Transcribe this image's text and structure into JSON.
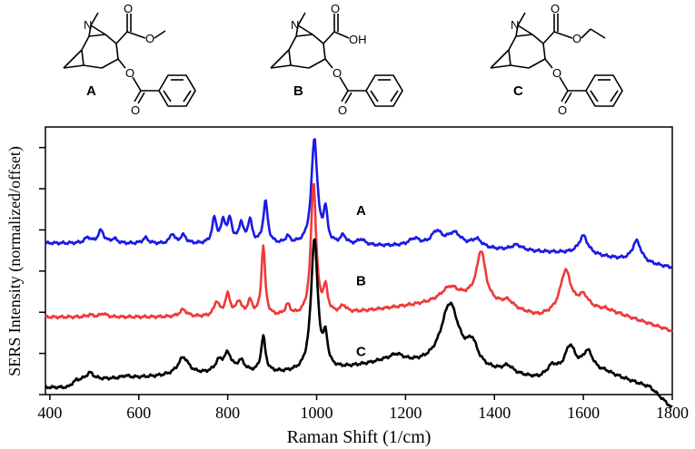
{
  "figure": {
    "structures": [
      {
        "label": "A",
        "atoms": [
          "N",
          "O",
          "O",
          "O",
          "O"
        ]
      },
      {
        "label": "B",
        "atoms": [
          "N",
          "OH",
          "O",
          "O",
          "O"
        ]
      },
      {
        "label": "C",
        "atoms": [
          "N",
          "O",
          "O",
          "O",
          "O"
        ]
      }
    ]
  },
  "chart_data": {
    "type": "line",
    "xlabel": "Raman Shift (1/cm)",
    "ylabel": "SERS Intensity (normalized/offset)",
    "xlim": [
      390,
      1800
    ],
    "x_ticks": [
      400,
      600,
      800,
      1000,
      1200,
      1400,
      1600,
      1800
    ],
    "y_tick_count": 7,
    "y_tick_labels": false,
    "grid": false,
    "series": [
      {
        "name": "A",
        "color": "#1a1ae6",
        "offset": 1.6,
        "baseline": [
          [
            390,
            0.05
          ],
          [
            1000,
            0.02
          ],
          [
            1200,
            0.0
          ],
          [
            1600,
            -0.1
          ],
          [
            1800,
            -0.3
          ]
        ],
        "peaks": [
          [
            485,
            0.08,
            8
          ],
          [
            515,
            0.18,
            8
          ],
          [
            545,
            0.06,
            8
          ],
          [
            615,
            0.08,
            8
          ],
          [
            675,
            0.14,
            6
          ],
          [
            700,
            0.12,
            8
          ],
          [
            770,
            0.35,
            6
          ],
          [
            790,
            0.3,
            6
          ],
          [
            805,
            0.32,
            6
          ],
          [
            830,
            0.28,
            6
          ],
          [
            850,
            0.32,
            6
          ],
          [
            885,
            0.6,
            6
          ],
          [
            935,
            0.1,
            6
          ],
          [
            995,
            1.5,
            8
          ],
          [
            1020,
            0.45,
            5
          ],
          [
            1060,
            0.12,
            8
          ],
          [
            1100,
            0.08,
            10
          ],
          [
            1220,
            0.1,
            15
          ],
          [
            1270,
            0.2,
            15
          ],
          [
            1310,
            0.2,
            20
          ],
          [
            1360,
            0.12,
            15
          ],
          [
            1450,
            0.08,
            15
          ],
          [
            1600,
            0.25,
            12
          ],
          [
            1720,
            0.3,
            12
          ]
        ]
      },
      {
        "name": "B",
        "color": "#ee3a3a",
        "offset": 0.6,
        "baseline": [
          [
            390,
            0.0
          ],
          [
            1000,
            0.0
          ],
          [
            1200,
            0.15
          ],
          [
            1350,
            0.25
          ],
          [
            1500,
            0.0
          ],
          [
            1650,
            0.1
          ],
          [
            1800,
            -0.2
          ]
        ],
        "peaks": [
          [
            490,
            0.03,
            8
          ],
          [
            520,
            0.05,
            8
          ],
          [
            700,
            0.1,
            10
          ],
          [
            775,
            0.2,
            7
          ],
          [
            800,
            0.3,
            7
          ],
          [
            825,
            0.2,
            7
          ],
          [
            850,
            0.2,
            7
          ],
          [
            880,
            1.0,
            5
          ],
          [
            935,
            0.15,
            7
          ],
          [
            993,
            1.9,
            7
          ],
          [
            1020,
            0.35,
            6
          ],
          [
            1060,
            0.1,
            8
          ],
          [
            1300,
            0.2,
            25
          ],
          [
            1370,
            0.7,
            12
          ],
          [
            1430,
            0.1,
            15
          ],
          [
            1560,
            0.6,
            15
          ],
          [
            1600,
            0.2,
            15
          ]
        ]
      },
      {
        "name": "C",
        "color": "#000000",
        "offset": -0.4,
        "baseline": [
          [
            390,
            0.0
          ],
          [
            440,
            0.0
          ],
          [
            460,
            0.1
          ],
          [
            800,
            0.2
          ],
          [
            1000,
            0.2
          ],
          [
            1150,
            0.35
          ],
          [
            1250,
            0.3
          ],
          [
            1400,
            0.2
          ],
          [
            1500,
            0.1
          ],
          [
            1650,
            0.2
          ],
          [
            1750,
            0.0
          ],
          [
            1800,
            -0.3
          ]
        ],
        "peaks": [
          [
            490,
            0.1,
            10
          ],
          [
            570,
            0.03,
            10
          ],
          [
            700,
            0.25,
            15
          ],
          [
            780,
            0.15,
            10
          ],
          [
            800,
            0.25,
            10
          ],
          [
            830,
            0.15,
            10
          ],
          [
            880,
            0.5,
            6
          ],
          [
            995,
            1.9,
            9
          ],
          [
            1020,
            0.4,
            6
          ],
          [
            1180,
            0.1,
            20
          ],
          [
            1300,
            0.9,
            25
          ],
          [
            1350,
            0.3,
            15
          ],
          [
            1430,
            0.1,
            15
          ],
          [
            1530,
            0.15,
            15
          ],
          [
            1570,
            0.4,
            15
          ],
          [
            1610,
            0.3,
            15
          ]
        ]
      }
    ]
  }
}
